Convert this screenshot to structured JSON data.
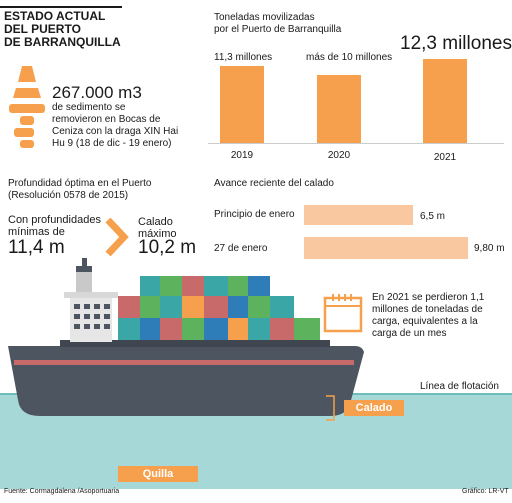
{
  "header": {
    "title_line1": "ESTADO ACTUAL",
    "title_line2": "DEL PUERTO",
    "title_line3": "DE BARRANQUILLA"
  },
  "sediment": {
    "amount": "267.000 m3",
    "line1": "de sedimento se",
    "line2": "removieron en Bocas de",
    "line3": "Ceniza con la draga XIN Hai",
    "line4": "Hu 9 (18 de dic - 19 enero)"
  },
  "tonnage": {
    "heading1": "Toneladas movilizadas",
    "heading2": "por el Puerto de Barranquilla",
    "years": [
      "2019",
      "2020",
      "2021"
    ],
    "labels": [
      "11,3 millones",
      "más de 10 millones",
      "12,3 millones"
    ],
    "values": [
      11.3,
      10,
      12.3
    ]
  },
  "depth": {
    "heading1": "Profundidad óptima en el Puerto",
    "heading2": "(Resolución 0578 de 2015)",
    "with_label1": "Con profundidades",
    "with_label2": "mínimas de",
    "with_value": "11,4 m",
    "max_label1": "Calado",
    "max_label2": "máximo",
    "max_value": "10,2 m"
  },
  "draft": {
    "heading": "Avance reciente del calado",
    "rows": [
      {
        "label": "Principio de enero",
        "value_text": "6,5 m",
        "value": 6.5
      },
      {
        "label": "27 de enero",
        "value_text": "9,80 m",
        "value": 9.8
      }
    ]
  },
  "note": {
    "line1": "En 2021 se perdieron 1,1",
    "line2": "millones de toneladas de",
    "line3": "carga, equivalentes a la",
    "line4": "carga de un mes"
  },
  "ship": {
    "waterline": "Línea de flotación",
    "draft_tag": "Calado",
    "keel_tag": "Quilla"
  },
  "footer": {
    "source": "Fuente: Cormagdalena /Asoportuaria",
    "credit": "Gráfico: LR-VT"
  },
  "colors": {
    "accent": "#f6a04d",
    "accent_light": "#f9c7a0",
    "water": "#a7d8d8",
    "hull": "#4d5560"
  }
}
